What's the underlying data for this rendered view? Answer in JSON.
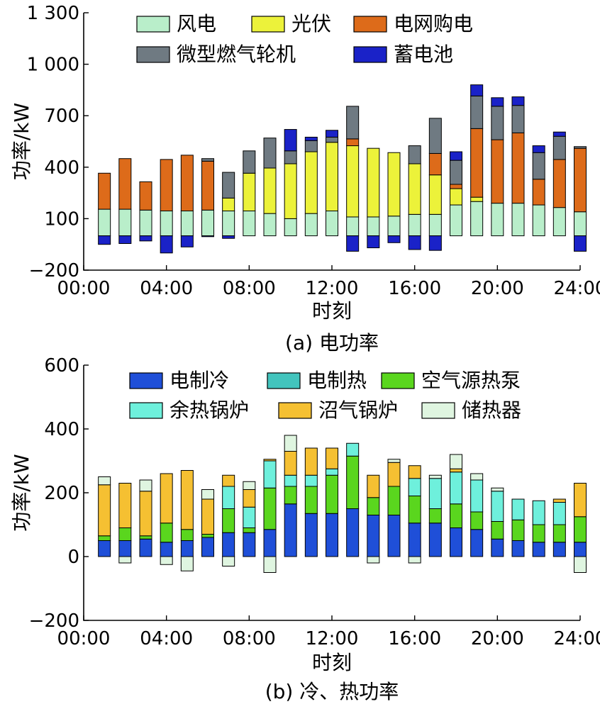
{
  "chart_data": [
    {
      "type": "bar",
      "stacked": true,
      "title": "",
      "caption": "(a) 电功率",
      "xlabel": "时刻",
      "ylabel": "功率/kW",
      "ylim": [
        -200,
        1300
      ],
      "yticks": [
        -200,
        100,
        400,
        700,
        1000,
        1300
      ],
      "ytick_labels": [
        "−200",
        "100",
        "400",
        "700",
        "1 000",
        "1 300"
      ],
      "xticks": [
        0,
        4,
        8,
        12,
        16,
        20,
        24
      ],
      "xtick_labels": [
        "00:00",
        "04:00",
        "08:00",
        "12:00",
        "16:00",
        "20:00",
        "24:00"
      ],
      "xlim": [
        0,
        24
      ],
      "x": [
        1,
        2,
        3,
        4,
        5,
        6,
        7,
        8,
        9,
        10,
        11,
        12,
        13,
        14,
        15,
        16,
        17,
        18,
        19,
        20,
        21,
        22,
        23,
        24
      ],
      "grid": false,
      "legend_position": "top",
      "series": [
        {
          "name": "风电",
          "color": "#b9eeca",
          "values": [
            155,
            155,
            150,
            145,
            145,
            150,
            145,
            145,
            130,
            100,
            130,
            145,
            110,
            110,
            115,
            125,
            125,
            180,
            200,
            190,
            190,
            180,
            165,
            140
          ]
        },
        {
          "name": "光伏",
          "color": "#ecf23a",
          "values": [
            0,
            0,
            0,
            0,
            0,
            0,
            75,
            220,
            265,
            320,
            360,
            400,
            415,
            400,
            370,
            295,
            230,
            95,
            25,
            0,
            0,
            0,
            0,
            0
          ]
        },
        {
          "name": "电网购电",
          "color": "#dd6b1a",
          "values": [
            210,
            295,
            165,
            300,
            325,
            285,
            0,
            0,
            0,
            0,
            0,
            0,
            40,
            0,
            0,
            0,
            125,
            25,
            400,
            370,
            410,
            150,
            280,
            370
          ]
        },
        {
          "name": "微型燃气轮机",
          "color": "#6f7a82",
          "values": [
            0,
            0,
            0,
            0,
            0,
            15,
            150,
            130,
            175,
            75,
            65,
            30,
            190,
            0,
            0,
            105,
            205,
            140,
            190,
            195,
            160,
            155,
            135,
            10
          ]
        },
        {
          "name": "蓄电池",
          "color": "#1a22c8",
          "values": [
            -50,
            -45,
            -30,
            -100,
            -65,
            -5,
            -15,
            0,
            0,
            125,
            20,
            40,
            -90,
            -70,
            -40,
            -80,
            -85,
            50,
            65,
            50,
            50,
            40,
            25,
            -90
          ]
        }
      ]
    },
    {
      "type": "bar",
      "stacked": true,
      "title": "",
      "caption": "(b) 冷、热功率",
      "xlabel": "时刻",
      "ylabel": "功率/kW",
      "ylim": [
        -200,
        600
      ],
      "yticks": [
        -200,
        0,
        200,
        400,
        600
      ],
      "ytick_labels": [
        "−200",
        "0",
        "200",
        "400",
        "600"
      ],
      "xticks": [
        0,
        4,
        8,
        12,
        16,
        20,
        24
      ],
      "xtick_labels": [
        "00:00",
        "04:00",
        "08:00",
        "12:00",
        "16:00",
        "20:00",
        "24:00"
      ],
      "xlim": [
        0,
        24
      ],
      "x": [
        1,
        2,
        3,
        4,
        5,
        6,
        7,
        8,
        9,
        10,
        11,
        12,
        13,
        14,
        15,
        16,
        17,
        18,
        19,
        20,
        21,
        22,
        23,
        24
      ],
      "grid": false,
      "legend_position": "top",
      "series": [
        {
          "name": "电制冷",
          "color": "#1f4fd8",
          "values": [
            50,
            50,
            55,
            45,
            50,
            60,
            75,
            75,
            85,
            165,
            135,
            135,
            150,
            130,
            130,
            105,
            105,
            90,
            85,
            55,
            50,
            45,
            45,
            45
          ]
        },
        {
          "name": "电制热",
          "color": "#42c4bd",
          "values": [
            0,
            0,
            0,
            0,
            0,
            0,
            0,
            0,
            0,
            0,
            0,
            0,
            0,
            0,
            0,
            0,
            0,
            0,
            0,
            0,
            0,
            0,
            0,
            0
          ]
        },
        {
          "name": "空气源热泵",
          "color": "#5ad61e",
          "values": [
            15,
            40,
            10,
            60,
            35,
            10,
            75,
            15,
            130,
            55,
            85,
            120,
            165,
            55,
            90,
            85,
            45,
            75,
            55,
            55,
            65,
            55,
            55,
            80
          ]
        },
        {
          "name": "余热锅炉",
          "color": "#6ef0dc",
          "values": [
            0,
            0,
            0,
            0,
            0,
            0,
            70,
            65,
            85,
            35,
            35,
            20,
            40,
            0,
            0,
            55,
            95,
            100,
            100,
            95,
            65,
            75,
            70,
            0
          ]
        },
        {
          "name": "沼气锅炉",
          "color": "#f5c032",
          "values": [
            160,
            140,
            140,
            155,
            185,
            110,
            35,
            55,
            5,
            75,
            85,
            65,
            0,
            70,
            75,
            40,
            0,
            10,
            0,
            0,
            0,
            0,
            10,
            105
          ]
        },
        {
          "name": "储热器",
          "color": "#dff5e0",
          "values": [
            25,
            -20,
            35,
            -25,
            -45,
            30,
            -30,
            25,
            -50,
            50,
            0,
            0,
            0,
            -20,
            10,
            -20,
            10,
            45,
            20,
            10,
            0,
            0,
            0,
            -50
          ]
        }
      ]
    }
  ]
}
